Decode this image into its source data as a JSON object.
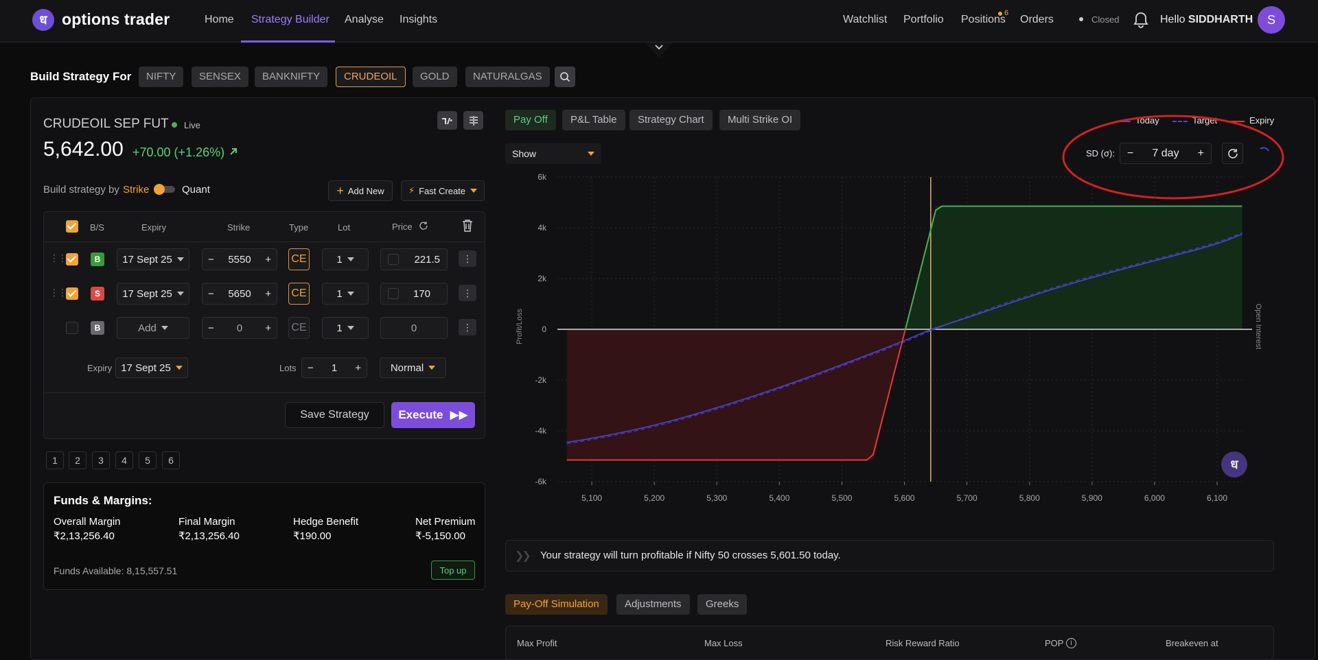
{
  "nav": {
    "brand": "options trader",
    "logo_glyph": "ध",
    "links": [
      "Home",
      "Strategy Builder",
      "Analyse",
      "Insights"
    ],
    "right_links": [
      "Watchlist",
      "Portfolio",
      "Positions",
      "Orders"
    ],
    "positions_badge": "6",
    "market_status": "Closed",
    "greeting": "Hello",
    "user": "SIDDHARTH",
    "avatar": "S"
  },
  "build": {
    "label": "Build Strategy For",
    "instruments": [
      "NIFTY",
      "SENSEX",
      "BANKNIFTY",
      "CRUDEOIL",
      "GOLD",
      "NATURALGAS"
    ],
    "selected": "CRUDEOIL"
  },
  "instrument": {
    "name": "CRUDEOIL SEP FUT",
    "live": "Live",
    "price": "5,642.00",
    "change": "+70.00 (+1.26%)"
  },
  "builder": {
    "by_label": "Build strategy by",
    "mode_strike": "Strike",
    "mode_quant": "Quant",
    "add_new": "Add New",
    "fast_create": "Fast Create",
    "headers": {
      "bs": "B/S",
      "expiry": "Expiry",
      "strike": "Strike",
      "type": "Type",
      "lot": "Lot",
      "price": "Price"
    },
    "rows": [
      {
        "bs": "B",
        "expiry": "17 Sept 25",
        "strike": "5550",
        "type": "CE",
        "lot": "1",
        "price": "221.5",
        "checked": true
      },
      {
        "bs": "S",
        "expiry": "17 Sept 25",
        "strike": "5650",
        "type": "CE",
        "lot": "1",
        "price": "170",
        "checked": true
      },
      {
        "bs": "B",
        "expiry": "Add",
        "strike": "0",
        "type": "CE",
        "lot": "1",
        "price": "0",
        "checked": false
      }
    ],
    "expiry_label": "Expiry",
    "expiry_value": "17 Sept 25",
    "lots_label": "Lots",
    "lots_value": "1",
    "order_type": "Normal",
    "save": "Save Strategy",
    "execute": "Execute"
  },
  "pages": [
    "1",
    "2",
    "3",
    "4",
    "5",
    "6"
  ],
  "funds": {
    "title": "Funds & Margins:",
    "items": [
      {
        "label": "Overall Margin",
        "value": "₹2,13,256.40"
      },
      {
        "label": "Final Margin",
        "value": "₹2,13,256.40"
      },
      {
        "label": "Hedge Benefit",
        "value": "₹190.00"
      },
      {
        "label": "Net Premium",
        "value": "₹-5,150.00"
      }
    ],
    "available_label": "Funds Available:",
    "available_value": "8,15,557.51",
    "topup": "Top up"
  },
  "chart_tabs": [
    "Pay Off",
    "P&L Table",
    "Strategy Chart",
    "Multi Strike OI"
  ],
  "legend": [
    "Today",
    "Target",
    "Expiry"
  ],
  "show_label": "Show",
  "sd_label": "SD (σ):",
  "sd_value": "7 day",
  "message": "Your strategy will turn profitable if Nifty 50 crosses 5,601.50 today.",
  "bottom_tabs": [
    "Pay-Off Simulation",
    "Adjustments",
    "Greeks"
  ],
  "stats": [
    "Max Profit",
    "Max Loss",
    "Risk Reward Ratio",
    "POP",
    "Breakeven at"
  ],
  "colors": {
    "accent": "#7c5cff",
    "orange": "#f0a33a",
    "green": "#4caf50",
    "red": "#e53935",
    "blue": "#4a44d8",
    "annotation": "#d42020"
  },
  "chart_data": {
    "type": "line",
    "xlabel": "",
    "ylabel": "Profit/Loss",
    "y2label": "Open Interest",
    "x_ticks": [
      "5,100",
      "5,200",
      "5,300",
      "5,400",
      "5,500",
      "5,600",
      "5,700",
      "5,800",
      "5,900",
      "6,000",
      "6,100"
    ],
    "y_ticks": [
      "6k",
      "4k",
      "2k",
      "0",
      "-2k",
      "-4k",
      "-6k"
    ],
    "xlim": [
      5045,
      6145
    ],
    "ylim": [
      -6000,
      6000
    ],
    "spot": 5642,
    "series": [
      {
        "name": "Today",
        "x": [
          5060,
          5100,
          5200,
          5300,
          5400,
          5500,
          5600,
          5642,
          5700,
          5800,
          5900,
          6000,
          6100,
          6140
        ],
        "y": [
          -4450,
          -4300,
          -3800,
          -3100,
          -2300,
          -1400,
          -450,
          0,
          450,
          1300,
          2050,
          2700,
          3350,
          3750
        ]
      },
      {
        "name": "Expiry",
        "x": [
          5060,
          5540,
          5550,
          5650,
          5660,
          6140
        ],
        "y": [
          -5150,
          -5150,
          -5150,
          4850,
          4850,
          4850
        ]
      }
    ]
  }
}
